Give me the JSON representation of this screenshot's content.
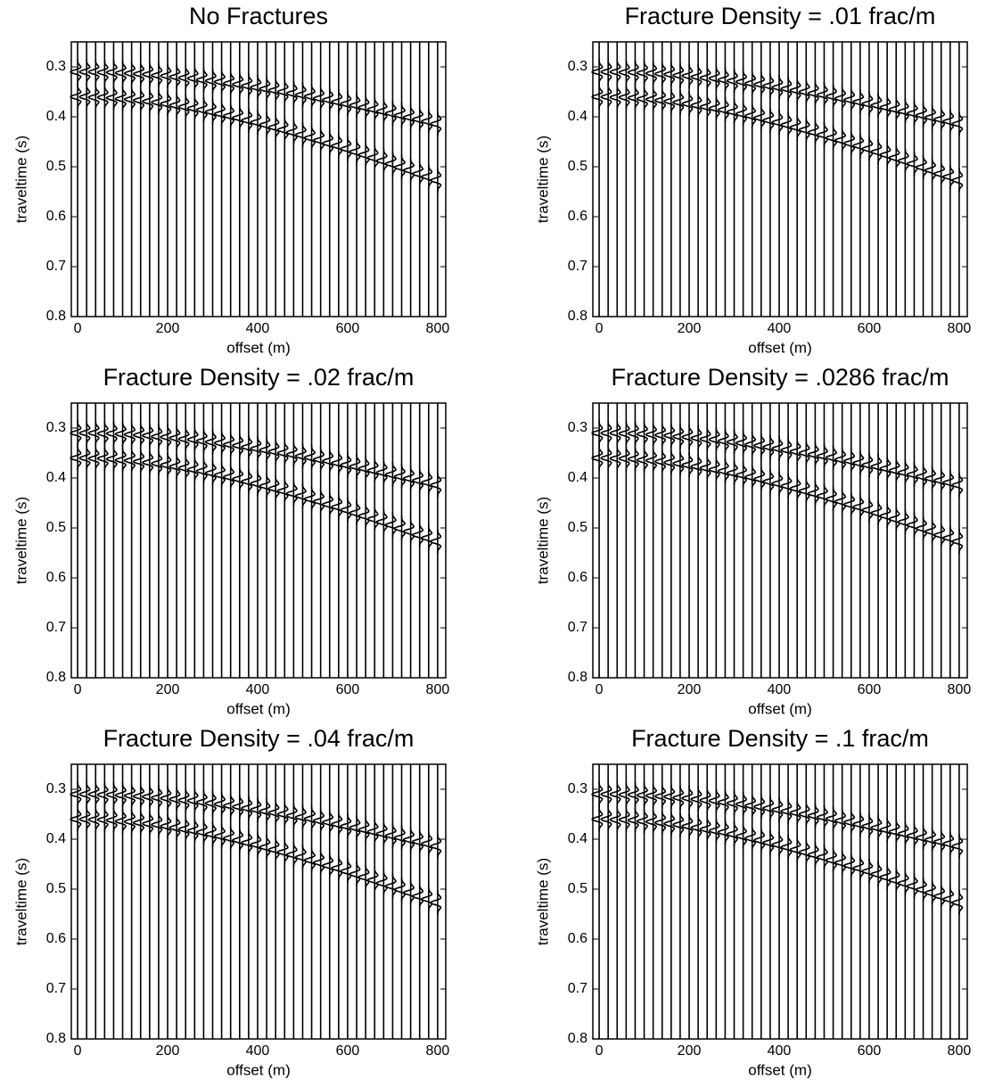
{
  "chart_data": [
    {
      "type": "seismogram",
      "title": "No Fractures",
      "xlabel": "offset (m)",
      "ylabel": "traveltime (s)",
      "xlim": [
        -14,
        818
      ],
      "ylim": [
        0.25,
        0.8
      ],
      "y_inverted": true,
      "xticks": [
        0,
        200,
        400,
        600,
        800
      ],
      "yticks": [
        0.3,
        0.4,
        0.5,
        0.6,
        0.7,
        0.8
      ],
      "x": [
        0,
        20,
        40,
        60,
        80,
        100,
        120,
        140,
        160,
        180,
        200,
        220,
        240,
        260,
        280,
        300,
        320,
        340,
        360,
        380,
        400,
        420,
        440,
        460,
        480,
        500,
        520,
        540,
        560,
        580,
        600,
        620,
        640,
        660,
        680,
        700,
        720,
        740,
        760,
        780,
        800
      ],
      "series": [
        {
          "values": [
            0.31,
            0.31,
            0.31,
            0.311,
            0.311,
            0.312,
            0.313,
            0.314,
            0.315,
            0.317,
            0.318,
            0.32,
            0.322,
            0.323,
            0.326,
            0.328,
            0.33,
            0.333,
            0.335,
            0.338,
            0.341,
            0.344,
            0.347,
            0.35,
            0.353,
            0.356,
            0.359,
            0.363,
            0.366,
            0.37,
            0.374,
            0.377,
            0.381,
            0.385,
            0.389,
            0.393,
            0.397,
            0.401,
            0.405,
            0.409,
            0.414
          ]
        },
        {
          "values": [
            0.36,
            0.36,
            0.361,
            0.361,
            0.362,
            0.364,
            0.365,
            0.367,
            0.369,
            0.371,
            0.374,
            0.377,
            0.38,
            0.383,
            0.386,
            0.39,
            0.394,
            0.398,
            0.402,
            0.407,
            0.411,
            0.416,
            0.421,
            0.426,
            0.431,
            0.436,
            0.442,
            0.447,
            0.453,
            0.458,
            0.464,
            0.47,
            0.476,
            0.482,
            0.488,
            0.494,
            0.501,
            0.507,
            0.514,
            0.52,
            0.527
          ]
        }
      ]
    },
    {
      "type": "seismogram",
      "title": "Fracture Density = .01 frac/m",
      "xlabel": "offset (m)",
      "ylabel": "traveltime (s)",
      "xlim": [
        -14,
        818
      ],
      "ylim": [
        0.25,
        0.8
      ],
      "y_inverted": true,
      "xticks": [
        0,
        200,
        400,
        600,
        800
      ],
      "yticks": [
        0.3,
        0.4,
        0.5,
        0.6,
        0.7,
        0.8
      ],
      "x": [
        0,
        20,
        40,
        60,
        80,
        100,
        120,
        140,
        160,
        180,
        200,
        220,
        240,
        260,
        280,
        300,
        320,
        340,
        360,
        380,
        400,
        420,
        440,
        460,
        480,
        500,
        520,
        540,
        560,
        580,
        600,
        620,
        640,
        660,
        680,
        700,
        720,
        740,
        760,
        780,
        800
      ],
      "series": [
        {
          "values": [
            0.31,
            0.31,
            0.31,
            0.311,
            0.311,
            0.312,
            0.313,
            0.314,
            0.315,
            0.317,
            0.318,
            0.32,
            0.322,
            0.323,
            0.326,
            0.328,
            0.33,
            0.333,
            0.335,
            0.338,
            0.341,
            0.344,
            0.347,
            0.35,
            0.353,
            0.356,
            0.359,
            0.363,
            0.366,
            0.37,
            0.374,
            0.377,
            0.381,
            0.385,
            0.389,
            0.393,
            0.397,
            0.401,
            0.405,
            0.409,
            0.414
          ]
        },
        {
          "values": [
            0.36,
            0.36,
            0.361,
            0.361,
            0.362,
            0.364,
            0.365,
            0.367,
            0.369,
            0.371,
            0.374,
            0.377,
            0.38,
            0.383,
            0.386,
            0.39,
            0.394,
            0.398,
            0.402,
            0.407,
            0.411,
            0.416,
            0.421,
            0.426,
            0.431,
            0.436,
            0.442,
            0.447,
            0.453,
            0.458,
            0.464,
            0.47,
            0.476,
            0.482,
            0.488,
            0.494,
            0.501,
            0.507,
            0.514,
            0.52,
            0.527
          ]
        }
      ]
    },
    {
      "type": "seismogram",
      "title": "Fracture Density = .02 frac/m",
      "xlabel": "offset (m)",
      "ylabel": "traveltime (s)",
      "xlim": [
        -14,
        818
      ],
      "ylim": [
        0.25,
        0.8
      ],
      "y_inverted": true,
      "xticks": [
        0,
        200,
        400,
        600,
        800
      ],
      "yticks": [
        0.3,
        0.4,
        0.5,
        0.6,
        0.7,
        0.8
      ],
      "x": [
        0,
        20,
        40,
        60,
        80,
        100,
        120,
        140,
        160,
        180,
        200,
        220,
        240,
        260,
        280,
        300,
        320,
        340,
        360,
        380,
        400,
        420,
        440,
        460,
        480,
        500,
        520,
        540,
        560,
        580,
        600,
        620,
        640,
        660,
        680,
        700,
        720,
        740,
        760,
        780,
        800
      ],
      "series": [
        {
          "values": [
            0.31,
            0.31,
            0.31,
            0.311,
            0.311,
            0.312,
            0.313,
            0.314,
            0.315,
            0.317,
            0.318,
            0.32,
            0.322,
            0.323,
            0.326,
            0.328,
            0.33,
            0.333,
            0.335,
            0.338,
            0.341,
            0.344,
            0.347,
            0.35,
            0.353,
            0.356,
            0.359,
            0.363,
            0.366,
            0.37,
            0.374,
            0.377,
            0.381,
            0.385,
            0.389,
            0.393,
            0.397,
            0.401,
            0.405,
            0.409,
            0.414
          ]
        },
        {
          "values": [
            0.36,
            0.36,
            0.361,
            0.361,
            0.362,
            0.364,
            0.365,
            0.367,
            0.369,
            0.371,
            0.374,
            0.377,
            0.38,
            0.383,
            0.386,
            0.39,
            0.394,
            0.398,
            0.402,
            0.407,
            0.411,
            0.416,
            0.421,
            0.426,
            0.431,
            0.436,
            0.442,
            0.447,
            0.453,
            0.458,
            0.464,
            0.47,
            0.476,
            0.482,
            0.488,
            0.494,
            0.501,
            0.507,
            0.514,
            0.52,
            0.527
          ]
        }
      ]
    },
    {
      "type": "seismogram",
      "title": "Fracture Density = .0286 frac/m",
      "xlabel": "offset (m)",
      "ylabel": "traveltime (s)",
      "xlim": [
        -14,
        818
      ],
      "ylim": [
        0.25,
        0.8
      ],
      "y_inverted": true,
      "xticks": [
        0,
        200,
        400,
        600,
        800
      ],
      "yticks": [
        0.3,
        0.4,
        0.5,
        0.6,
        0.7,
        0.8
      ],
      "x": [
        0,
        20,
        40,
        60,
        80,
        100,
        120,
        140,
        160,
        180,
        200,
        220,
        240,
        260,
        280,
        300,
        320,
        340,
        360,
        380,
        400,
        420,
        440,
        460,
        480,
        500,
        520,
        540,
        560,
        580,
        600,
        620,
        640,
        660,
        680,
        700,
        720,
        740,
        760,
        780,
        800
      ],
      "series": [
        {
          "values": [
            0.31,
            0.31,
            0.31,
            0.311,
            0.311,
            0.312,
            0.313,
            0.314,
            0.315,
            0.317,
            0.318,
            0.32,
            0.322,
            0.323,
            0.326,
            0.328,
            0.33,
            0.333,
            0.335,
            0.338,
            0.341,
            0.344,
            0.347,
            0.35,
            0.353,
            0.356,
            0.359,
            0.363,
            0.366,
            0.37,
            0.374,
            0.377,
            0.381,
            0.385,
            0.389,
            0.393,
            0.397,
            0.401,
            0.405,
            0.409,
            0.414
          ]
        },
        {
          "values": [
            0.36,
            0.36,
            0.361,
            0.361,
            0.362,
            0.364,
            0.365,
            0.367,
            0.369,
            0.371,
            0.374,
            0.377,
            0.38,
            0.383,
            0.386,
            0.39,
            0.394,
            0.398,
            0.402,
            0.407,
            0.411,
            0.416,
            0.421,
            0.426,
            0.431,
            0.436,
            0.442,
            0.447,
            0.453,
            0.458,
            0.464,
            0.47,
            0.476,
            0.482,
            0.488,
            0.494,
            0.501,
            0.507,
            0.514,
            0.52,
            0.527
          ]
        }
      ]
    },
    {
      "type": "seismogram",
      "title": "Fracture Density = .04 frac/m",
      "xlabel": "offset (m)",
      "ylabel": "traveltime (s)",
      "xlim": [
        -14,
        818
      ],
      "ylim": [
        0.25,
        0.8
      ],
      "y_inverted": true,
      "xticks": [
        0,
        200,
        400,
        600,
        800
      ],
      "yticks": [
        0.3,
        0.4,
        0.5,
        0.6,
        0.7,
        0.8
      ],
      "x": [
        0,
        20,
        40,
        60,
        80,
        100,
        120,
        140,
        160,
        180,
        200,
        220,
        240,
        260,
        280,
        300,
        320,
        340,
        360,
        380,
        400,
        420,
        440,
        460,
        480,
        500,
        520,
        540,
        560,
        580,
        600,
        620,
        640,
        660,
        680,
        700,
        720,
        740,
        760,
        780,
        800
      ],
      "series": [
        {
          "values": [
            0.31,
            0.31,
            0.31,
            0.311,
            0.311,
            0.312,
            0.313,
            0.314,
            0.315,
            0.317,
            0.318,
            0.32,
            0.322,
            0.323,
            0.326,
            0.328,
            0.33,
            0.333,
            0.335,
            0.338,
            0.341,
            0.344,
            0.347,
            0.35,
            0.353,
            0.356,
            0.359,
            0.363,
            0.366,
            0.37,
            0.374,
            0.377,
            0.381,
            0.385,
            0.389,
            0.393,
            0.397,
            0.401,
            0.405,
            0.409,
            0.414
          ]
        },
        {
          "values": [
            0.36,
            0.36,
            0.361,
            0.361,
            0.362,
            0.364,
            0.365,
            0.367,
            0.369,
            0.371,
            0.374,
            0.377,
            0.38,
            0.383,
            0.386,
            0.39,
            0.394,
            0.398,
            0.402,
            0.407,
            0.411,
            0.416,
            0.421,
            0.426,
            0.431,
            0.436,
            0.442,
            0.447,
            0.453,
            0.458,
            0.464,
            0.47,
            0.476,
            0.482,
            0.488,
            0.494,
            0.501,
            0.507,
            0.514,
            0.52,
            0.527
          ]
        }
      ]
    },
    {
      "type": "seismogram",
      "title": "Fracture Density = .1 frac/m",
      "xlabel": "offset (m)",
      "ylabel": "traveltime (s)",
      "xlim": [
        -14,
        818
      ],
      "ylim": [
        0.25,
        0.8
      ],
      "y_inverted": true,
      "xticks": [
        0,
        200,
        400,
        600,
        800
      ],
      "yticks": [
        0.3,
        0.4,
        0.5,
        0.6,
        0.7,
        0.8
      ],
      "x": [
        0,
        20,
        40,
        60,
        80,
        100,
        120,
        140,
        160,
        180,
        200,
        220,
        240,
        260,
        280,
        300,
        320,
        340,
        360,
        380,
        400,
        420,
        440,
        460,
        480,
        500,
        520,
        540,
        560,
        580,
        600,
        620,
        640,
        660,
        680,
        700,
        720,
        740,
        760,
        780,
        800
      ],
      "series": [
        {
          "values": [
            0.31,
            0.31,
            0.31,
            0.311,
            0.311,
            0.312,
            0.313,
            0.314,
            0.315,
            0.317,
            0.318,
            0.32,
            0.322,
            0.323,
            0.326,
            0.328,
            0.33,
            0.333,
            0.335,
            0.338,
            0.341,
            0.344,
            0.347,
            0.35,
            0.353,
            0.356,
            0.359,
            0.363,
            0.366,
            0.37,
            0.374,
            0.377,
            0.381,
            0.385,
            0.389,
            0.393,
            0.397,
            0.401,
            0.405,
            0.409,
            0.414
          ]
        },
        {
          "values": [
            0.36,
            0.36,
            0.361,
            0.361,
            0.362,
            0.364,
            0.365,
            0.367,
            0.369,
            0.371,
            0.374,
            0.377,
            0.38,
            0.383,
            0.386,
            0.39,
            0.394,
            0.398,
            0.402,
            0.407,
            0.411,
            0.416,
            0.421,
            0.426,
            0.431,
            0.436,
            0.442,
            0.447,
            0.453,
            0.458,
            0.464,
            0.47,
            0.476,
            0.482,
            0.488,
            0.494,
            0.501,
            0.507,
            0.514,
            0.52,
            0.527
          ]
        }
      ]
    }
  ]
}
